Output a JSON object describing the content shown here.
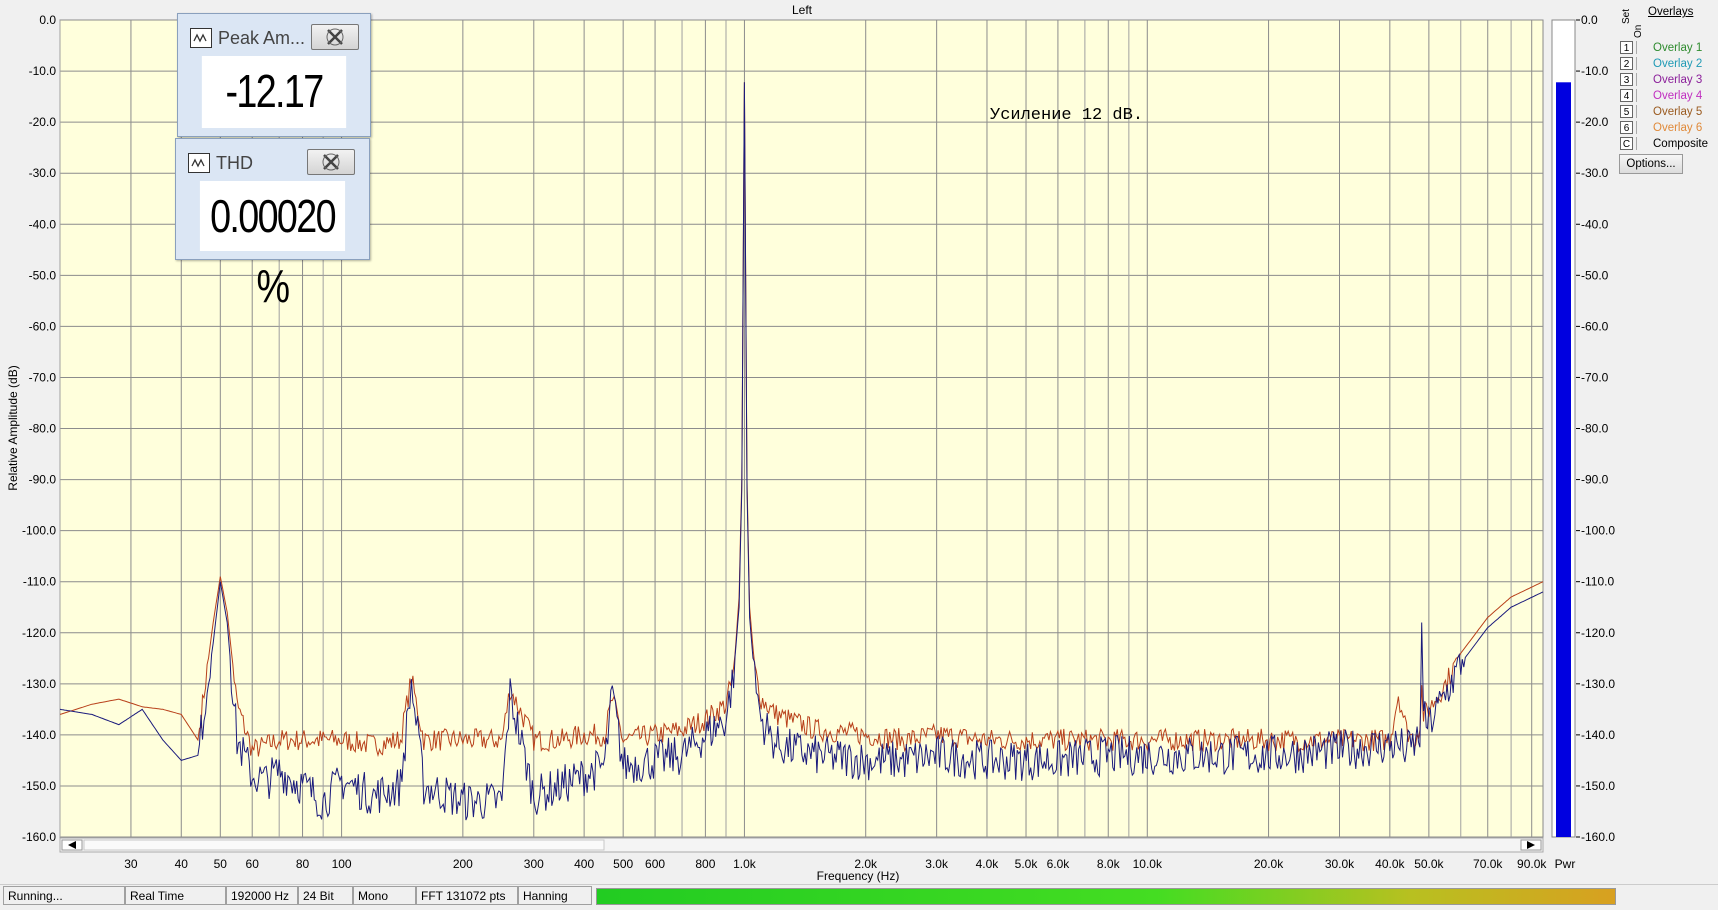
{
  "chart_data": {
    "type": "line",
    "title": "Left",
    "xlabel": "Frequency (Hz)",
    "ylabel": "Relative Amplitude (dB)",
    "x_scale": "log",
    "xlim": [
      20,
      96000
    ],
    "ylim": [
      -160,
      0
    ],
    "grid": true,
    "x_ticks": [
      {
        "v": 30,
        "label": "30"
      },
      {
        "v": 40,
        "label": "40"
      },
      {
        "v": 50,
        "label": "50"
      },
      {
        "v": 60,
        "label": "60"
      },
      {
        "v": 80,
        "label": "80"
      },
      {
        "v": 100,
        "label": "100"
      },
      {
        "v": 200,
        "label": "200"
      },
      {
        "v": 300,
        "label": "300"
      },
      {
        "v": 400,
        "label": "400"
      },
      {
        "v": 500,
        "label": "500"
      },
      {
        "v": 600,
        "label": "600"
      },
      {
        "v": 800,
        "label": "800"
      },
      {
        "v": 1000,
        "label": "1.0k"
      },
      {
        "v": 2000,
        "label": "2.0k"
      },
      {
        "v": 3000,
        "label": "3.0k"
      },
      {
        "v": 4000,
        "label": "4.0k"
      },
      {
        "v": 5000,
        "label": "5.0k"
      },
      {
        "v": 6000,
        "label": "6.0k"
      },
      {
        "v": 8000,
        "label": "8.0k"
      },
      {
        "v": 10000,
        "label": "10.0k"
      },
      {
        "v": 20000,
        "label": "20.0k"
      },
      {
        "v": 30000,
        "label": "30.0k"
      },
      {
        "v": 40000,
        "label": "40.0k"
      },
      {
        "v": 50000,
        "label": "50.0k"
      },
      {
        "v": 70000,
        "label": "70.0k"
      },
      {
        "v": 90000,
        "label": "90.0k"
      }
    ],
    "x_minor": [
      20,
      70,
      90,
      700,
      900,
      7000,
      9000,
      60000,
      80000
    ],
    "y_ticks": [
      0,
      -10,
      -20,
      -30,
      -40,
      -50,
      -60,
      -70,
      -80,
      -90,
      -100,
      -110,
      -120,
      -130,
      -140,
      -150,
      -160
    ],
    "y_tick_labels": [
      "0.0",
      "-10.0",
      "-20.0",
      "-30.0",
      "-40.0",
      "-50.0",
      "-60.0",
      "-70.0",
      "-80.0",
      "-90.0",
      "-100.0",
      "-110.0",
      "-120.0",
      "-130.0",
      "-140.0",
      "-150.0",
      "-160.0"
    ],
    "annotation": "Усиление 12 dB.",
    "series": [
      {
        "color": "#b8401a",
        "x": [
          20,
          24,
          28,
          32,
          36,
          40,
          44,
          48,
          50,
          52,
          55,
          60,
          65,
          70,
          80,
          90,
          100,
          120,
          140,
          149,
          160,
          200,
          250,
          262,
          300,
          350,
          400,
          450,
          470,
          500,
          600,
          700,
          800,
          900,
          940,
          970,
          985,
          1000,
          1015,
          1030,
          1060,
          1100,
          1200,
          1500,
          2000,
          2500,
          3000,
          4000,
          6000,
          8000,
          10000,
          15000,
          20000,
          30000,
          40000,
          42000,
          44000,
          46000,
          47500,
          48000,
          48500,
          50000,
          55000,
          60000,
          70000,
          80000,
          96000
        ],
        "y": [
          -136,
          -134,
          -133,
          -134.5,
          -135,
          -136,
          -141,
          -118,
          -109,
          -116,
          -134,
          -143,
          -142,
          -141,
          -141,
          -141,
          -141,
          -142,
          -141,
          -129,
          -141,
          -141,
          -141,
          -131,
          -141,
          -141,
          -140,
          -140,
          -133,
          -141,
          -140,
          -139,
          -137,
          -134,
          -128,
          -113,
          -90,
          -12.2,
          -90,
          -115,
          -127,
          -133,
          -136,
          -139,
          -140,
          -141,
          -140,
          -141,
          -141,
          -141,
          -141,
          -141,
          -141,
          -141,
          -141,
          -132,
          -139,
          -141,
          -138,
          -131,
          -136,
          -135,
          -130,
          -124,
          -117,
          -113,
          -110
        ]
      },
      {
        "color": "#1a1a7c",
        "x": [
          20,
          24,
          28,
          32,
          36,
          40,
          44,
          48,
          50,
          52,
          55,
          60,
          65,
          70,
          80,
          90,
          100,
          120,
          140,
          149,
          160,
          200,
          250,
          262,
          300,
          350,
          400,
          450,
          470,
          500,
          600,
          700,
          800,
          900,
          940,
          970,
          985,
          1000,
          1015,
          1030,
          1060,
          1100,
          1200,
          1500,
          2000,
          2500,
          3000,
          4000,
          6000,
          8000,
          10000,
          15000,
          20000,
          30000,
          40000,
          42000,
          44000,
          46000,
          47500,
          48000,
          48500,
          50000,
          55000,
          60000,
          70000,
          80000,
          96000
        ],
        "y": [
          -135,
          -136,
          -138,
          -135,
          -141,
          -145,
          -144,
          -122,
          -110,
          -118,
          -141,
          -148,
          -149,
          -147,
          -150,
          -153,
          -149,
          -152,
          -150,
          -130,
          -150,
          -153,
          -153,
          -132,
          -152,
          -150,
          -148,
          -146,
          -132,
          -146,
          -145,
          -144,
          -140,
          -137,
          -128,
          -115,
          -92,
          -12.2,
          -92,
          -117,
          -129,
          -137,
          -142,
          -144,
          -145,
          -145,
          -144,
          -145,
          -145,
          -144,
          -144,
          -144,
          -144,
          -143,
          -142,
          -142,
          -143,
          -142,
          -140,
          -118,
          -137,
          -138,
          -132,
          -126,
          -119,
          -115,
          -112
        ]
      }
    ],
    "level_meter": {
      "label": "Pwr",
      "value": -12.2
    }
  },
  "widgets": {
    "peak": {
      "title": "Peak Am...",
      "value": "-12.17 dB"
    },
    "thd": {
      "title": "THD",
      "value": "0.00020 %"
    }
  },
  "overlays": {
    "header": "Overlays",
    "set_label": "Set",
    "on_label": "On",
    "items": [
      {
        "key": "1",
        "label": "Overlay 1",
        "color": "#2e8b2e"
      },
      {
        "key": "2",
        "label": "Overlay 2",
        "color": "#1f9ab5"
      },
      {
        "key": "3",
        "label": "Overlay 3",
        "color": "#8b1f9a"
      },
      {
        "key": "4",
        "label": "Overlay 4",
        "color": "#c02fc0"
      },
      {
        "key": "5",
        "label": "Overlay 5",
        "color": "#9a5a1f"
      },
      {
        "key": "6",
        "label": "Overlay 6",
        "color": "#e08a3a"
      },
      {
        "key": "C",
        "label": "Composite",
        "color": "#000000"
      }
    ],
    "options_label": "Options..."
  },
  "status_bar": {
    "state": "Running...",
    "mode": "Real Time",
    "sample_rate": "192000 Hz",
    "bits": "24 Bit",
    "channels": "Mono",
    "fft": "FFT 131072 pts",
    "window": "Hanning"
  }
}
